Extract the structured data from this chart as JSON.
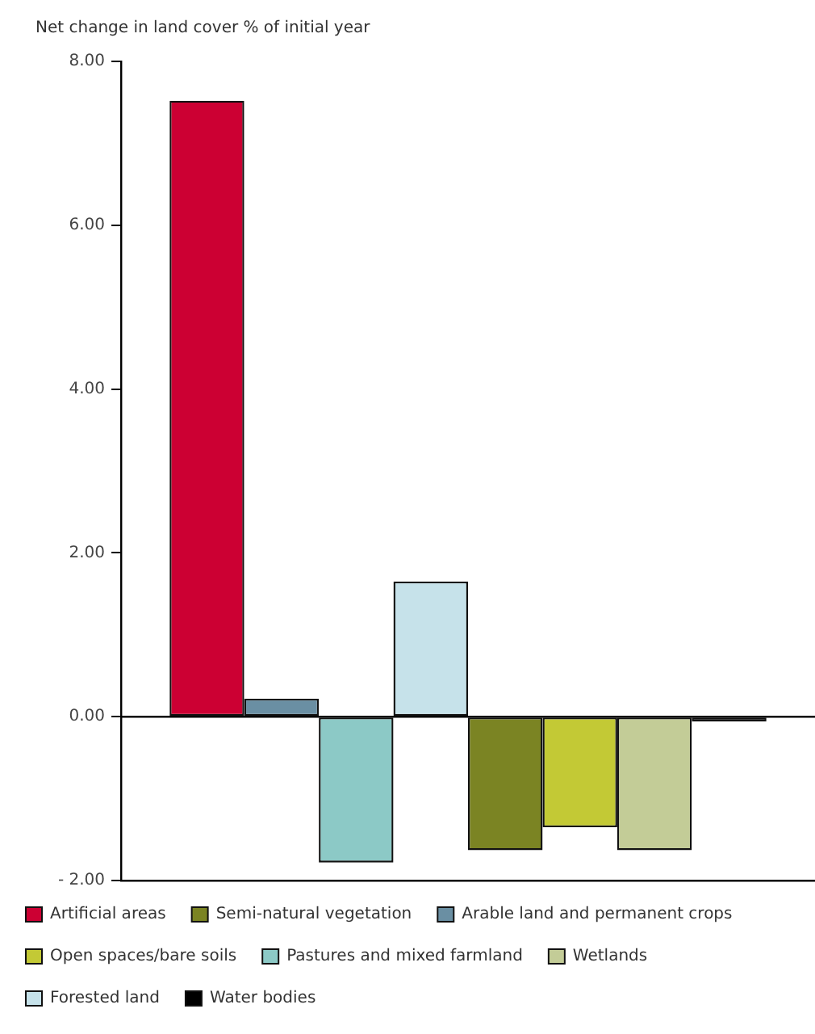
{
  "chart_data": {
    "type": "bar",
    "ylabel": "Net change in land cover % of initial year",
    "categories": [
      null
    ],
    "series": [
      {
        "name": "Artificial areas",
        "color": "#cc0033",
        "values": [
          7.52
        ]
      },
      {
        "name": "Arable land and permanent crops",
        "color": "#6a8fa3",
        "values": [
          0.22
        ]
      },
      {
        "name": "Pastures and mixed farmland",
        "color": "#8cc9c6",
        "values": [
          -1.78
        ]
      },
      {
        "name": "Forested land",
        "color": "#c6e2ea",
        "values": [
          1.65
        ]
      },
      {
        "name": "Semi-natural vegetation",
        "color": "#7b8423",
        "values": [
          -1.63
        ]
      },
      {
        "name": "Open spaces/bare soils",
        "color": "#c3c935",
        "values": [
          -1.35
        ]
      },
      {
        "name": "Wetlands",
        "color": "#c3cc97",
        "values": [
          -1.63
        ]
      },
      {
        "name": "Water bodies",
        "color": "#000000",
        "values": [
          -0.06
        ]
      }
    ],
    "ylim": [
      -2,
      8
    ],
    "yticks": [
      {
        "value": -2,
        "label": "- 2.00"
      },
      {
        "value": 0,
        "label": "0.00"
      },
      {
        "value": 2,
        "label": "2.00"
      },
      {
        "value": 4,
        "label": "4.00"
      },
      {
        "value": 6,
        "label": "6.00"
      },
      {
        "value": 8,
        "label": "8.00"
      }
    ],
    "tick_labels": "y",
    "legend": "bottom"
  }
}
